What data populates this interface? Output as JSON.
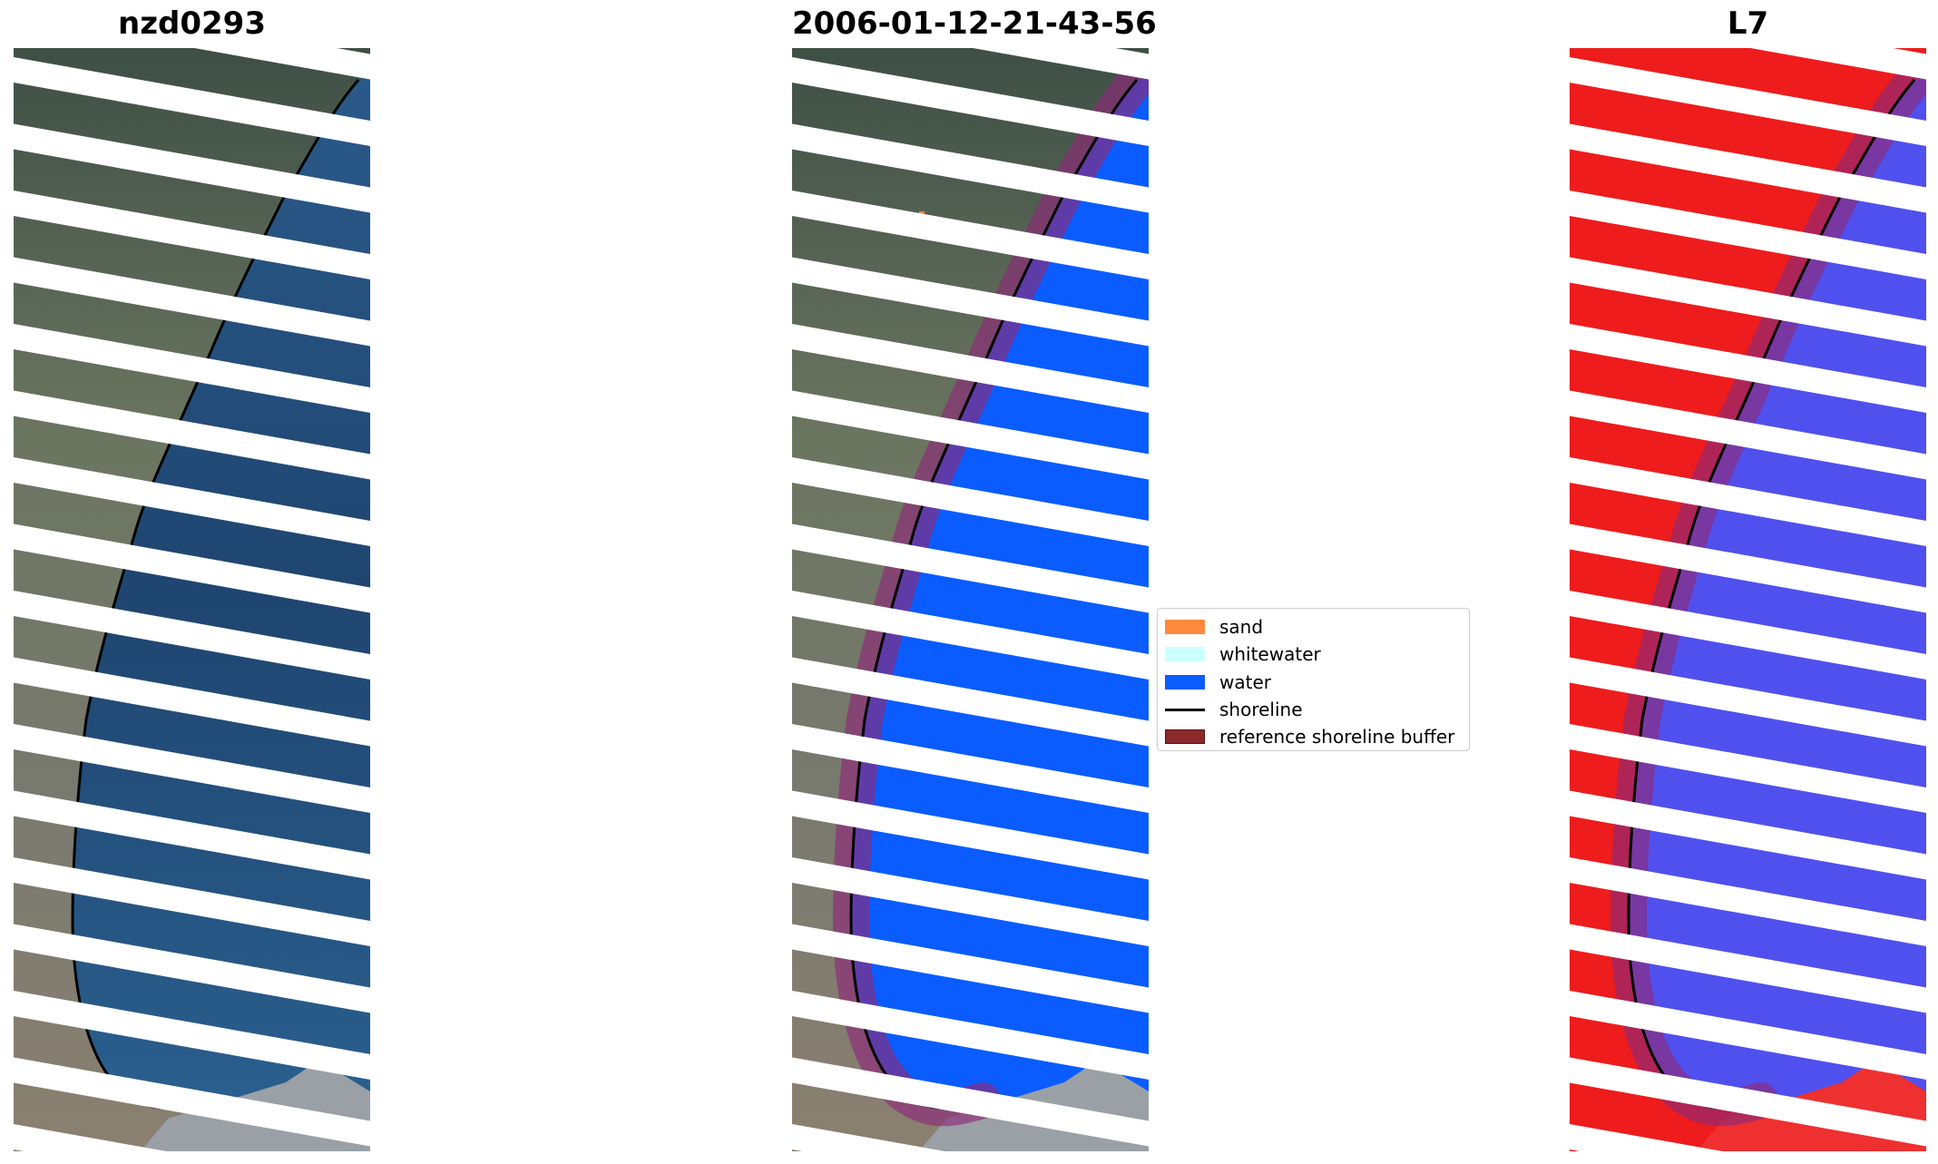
{
  "figure": {
    "panels": [
      {
        "title": "nzd0293"
      },
      {
        "title": "2006-01-12-21-43-56"
      },
      {
        "title": "L7"
      }
    ]
  },
  "legend": {
    "items": [
      {
        "label": "sand",
        "color": "#ff8a3d",
        "kind": "patch"
      },
      {
        "label": "whitewater",
        "color": "#ccffff",
        "kind": "patch"
      },
      {
        "label": "water",
        "color": "#0a5cff",
        "kind": "patch"
      },
      {
        "label": "shoreline",
        "color": "#000000",
        "kind": "line"
      },
      {
        "label": "reference shoreline buffer",
        "color": "#8b2a2a",
        "kind": "patch"
      }
    ]
  },
  "colors": {
    "ocean_rgb": "#1f4a78",
    "land_rgb": "#5d6b54",
    "mndwi_land": "#ee1c1c",
    "mndwi_water": "#5050ee",
    "classified_water": "#0a5cff",
    "buffer_overlay": "#8e2a78"
  }
}
